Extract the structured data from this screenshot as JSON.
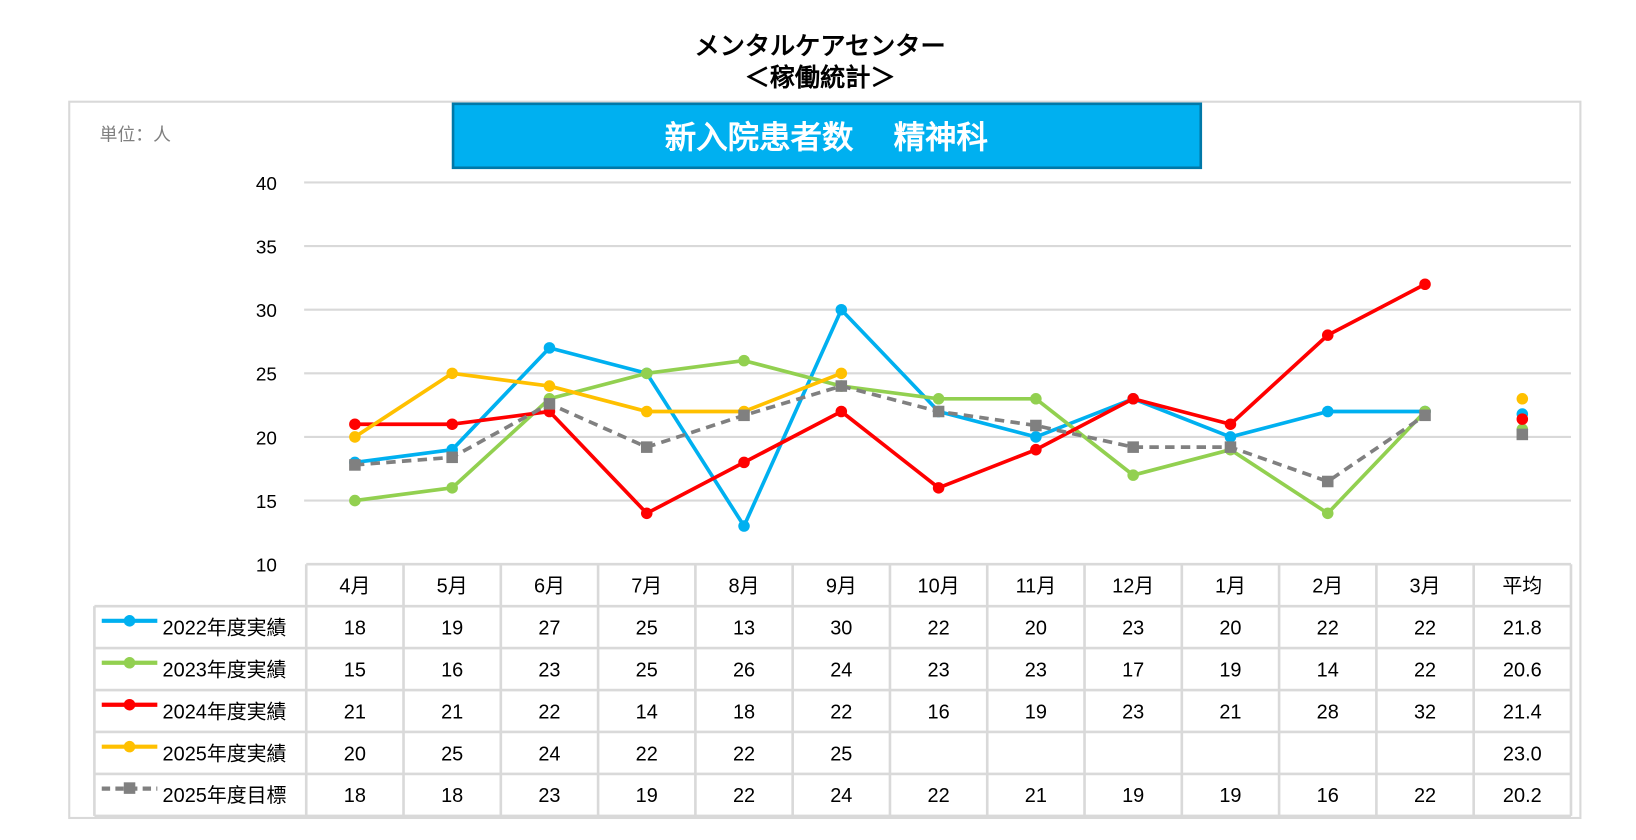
{
  "header": {
    "title_line1": "メンタルケアセンター",
    "title_line2": "＜稼働統計＞"
  },
  "chart_data": {
    "type": "line",
    "title": "新入院患者数　 精神科",
    "unit_label": "単位：人",
    "categories": [
      "4月",
      "5月",
      "6月",
      "7月",
      "8月",
      "9月",
      "10月",
      "11月",
      "12月",
      "1月",
      "2月",
      "3月"
    ],
    "average_label": "平均",
    "ylim": [
      10,
      40
    ],
    "yticks": [
      10,
      15,
      20,
      25,
      30,
      35,
      40
    ],
    "grid": true,
    "legend_placement": "table-left",
    "series": [
      {
        "name": "2022年度実績",
        "color": "#00b0f0",
        "dashed": false,
        "marker": "circle",
        "values": [
          18,
          19,
          27,
          25,
          13,
          30,
          22,
          20,
          23,
          20,
          22,
          22
        ],
        "average": 21.8,
        "average_text": "21.8"
      },
      {
        "name": "2023年度実績",
        "color": "#92d050",
        "dashed": false,
        "marker": "circle",
        "values": [
          15,
          16,
          23,
          25,
          26,
          24,
          23,
          23,
          17,
          19,
          14,
          22
        ],
        "average": 20.6,
        "average_text": "20.6"
      },
      {
        "name": "2024年度実績",
        "color": "#ff0000",
        "dashed": false,
        "marker": "circle",
        "values": [
          21,
          21,
          22,
          14,
          18,
          22,
          16,
          19,
          23,
          21,
          28,
          32
        ],
        "average": 21.4,
        "average_text": "21.4"
      },
      {
        "name": "2025年度実績",
        "color": "#ffc000",
        "dashed": false,
        "marker": "circle",
        "values": [
          20,
          25,
          24,
          22,
          22,
          25,
          null,
          null,
          null,
          null,
          null,
          null
        ],
        "average": 23.0,
        "average_text": "23.0"
      },
      {
        "name": "2025年度目標",
        "color": "#808080",
        "dashed": true,
        "marker": "square",
        "values": [
          18,
          18,
          23,
          19,
          22,
          24,
          22,
          21,
          19,
          19,
          16,
          22
        ],
        "average": 20.2,
        "average_text": "20.2",
        "plotted": [
          17.8,
          18.4,
          22.6,
          19.2,
          21.7,
          24.0,
          22.0,
          20.9,
          19.2,
          19.2,
          16.5,
          21.7
        ]
      }
    ]
  },
  "colors": {
    "banner": "#00b0f0",
    "banner_border": "#0070a0"
  }
}
